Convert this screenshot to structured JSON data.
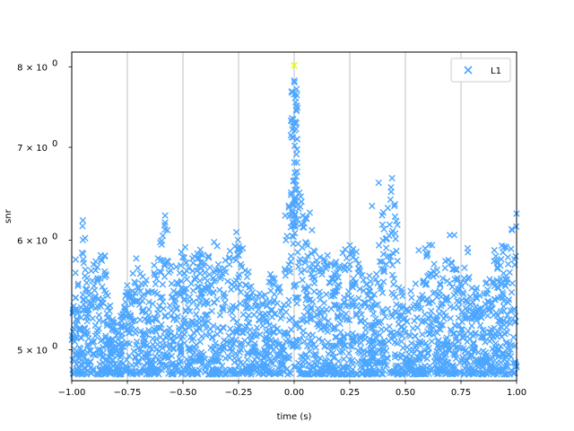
{
  "chart_data": {
    "type": "scatter",
    "title": "",
    "xlabel": "time (s)",
    "ylabel": "snr",
    "xlim": [
      -1.0,
      1.0
    ],
    "ylim": [
      4.75,
      8.2
    ],
    "yscale": "log",
    "grid": "x-vertical",
    "legend_position": "top-right",
    "x_ticks": [
      -1.0,
      -0.75,
      -0.5,
      -0.25,
      0.0,
      0.25,
      0.5,
      0.75,
      1.0
    ],
    "x_tick_labels": [
      "−1.00",
      "−0.75",
      "−0.50",
      "−0.25",
      "0.00",
      "0.25",
      "0.50",
      "0.75",
      "1.00"
    ],
    "y_ticks": [
      5,
      6,
      7,
      8
    ],
    "y_tick_labels": [
      {
        "base": "5 × 10",
        "exp": "0"
      },
      {
        "base": "6 × 10",
        "exp": "0"
      },
      {
        "base": "7 × 10",
        "exp": "0"
      },
      {
        "base": "8 × 10",
        "exp": "0"
      }
    ],
    "series": [
      {
        "name": "L1",
        "marker": "x",
        "color": "#4da6ff",
        "envelope": [
          [
            -1.0,
            5.85
          ],
          [
            -0.97,
            5.95
          ],
          [
            -0.95,
            6.2
          ],
          [
            -0.93,
            5.6
          ],
          [
            -0.9,
            5.8
          ],
          [
            -0.85,
            5.9
          ],
          [
            -0.82,
            5.3
          ],
          [
            -0.8,
            5.2
          ],
          [
            -0.75,
            5.6
          ],
          [
            -0.72,
            5.7
          ],
          [
            -0.7,
            5.9
          ],
          [
            -0.67,
            5.6
          ],
          [
            -0.62,
            5.8
          ],
          [
            -0.58,
            6.25
          ],
          [
            -0.55,
            5.7
          ],
          [
            -0.5,
            5.95
          ],
          [
            -0.47,
            5.7
          ],
          [
            -0.45,
            5.9
          ],
          [
            -0.4,
            5.95
          ],
          [
            -0.37,
            5.9
          ],
          [
            -0.35,
            6.0
          ],
          [
            -0.3,
            5.85
          ],
          [
            -0.26,
            6.1
          ],
          [
            -0.22,
            5.95
          ],
          [
            -0.2,
            5.6
          ],
          [
            -0.15,
            5.5
          ],
          [
            -0.1,
            5.7
          ],
          [
            -0.07,
            5.6
          ],
          [
            -0.04,
            6.0
          ],
          [
            -0.02,
            6.6
          ],
          [
            0.0,
            7.6
          ],
          [
            0.01,
            7.3
          ],
          [
            0.02,
            6.6
          ],
          [
            0.04,
            6.3
          ],
          [
            0.06,
            6.2
          ],
          [
            0.08,
            5.9
          ],
          [
            0.12,
            5.9
          ],
          [
            0.15,
            5.8
          ],
          [
            0.2,
            5.85
          ],
          [
            0.24,
            5.95
          ],
          [
            0.28,
            5.9
          ],
          [
            0.32,
            5.7
          ],
          [
            0.36,
            5.6
          ],
          [
            0.38,
            6.0
          ],
          [
            0.4,
            6.4
          ],
          [
            0.42,
            6.5
          ],
          [
            0.44,
            6.6
          ],
          [
            0.46,
            6.3
          ],
          [
            0.48,
            5.6
          ],
          [
            0.5,
            5.4
          ],
          [
            0.54,
            5.6
          ],
          [
            0.57,
            5.8
          ],
          [
            0.6,
            6.0
          ],
          [
            0.62,
            5.9
          ],
          [
            0.66,
            5.6
          ],
          [
            0.7,
            6.05
          ],
          [
            0.74,
            5.6
          ],
          [
            0.78,
            5.9
          ],
          [
            0.8,
            5.6
          ],
          [
            0.84,
            5.5
          ],
          [
            0.88,
            5.8
          ],
          [
            0.92,
            5.9
          ],
          [
            0.96,
            6.1
          ],
          [
            1.0,
            6.3
          ]
        ],
        "outliers": [
          [
            -0.95,
            6.2
          ],
          [
            -0.94,
            6.02
          ],
          [
            -0.87,
            5.85
          ],
          [
            -0.71,
            5.82
          ],
          [
            -0.58,
            6.25
          ],
          [
            -0.57,
            6.1
          ],
          [
            -0.49,
            5.93
          ],
          [
            -0.36,
            5.98
          ],
          [
            -0.26,
            6.08
          ],
          [
            -0.04,
            6.25
          ],
          [
            0.07,
            6.28
          ],
          [
            0.08,
            6.1
          ],
          [
            0.15,
            5.85
          ],
          [
            0.25,
            5.95
          ],
          [
            0.35,
            6.35
          ],
          [
            0.38,
            6.6
          ],
          [
            0.44,
            6.65
          ],
          [
            0.45,
            6.35
          ],
          [
            0.56,
            5.9
          ],
          [
            0.62,
            5.95
          ],
          [
            0.7,
            6.05
          ],
          [
            0.72,
            6.05
          ],
          [
            0.78,
            5.92
          ],
          [
            0.9,
            5.9
          ],
          [
            0.98,
            6.1
          ],
          [
            1.0,
            6.27
          ]
        ],
        "peak": [
          0.0,
          7.82
        ]
      },
      {
        "name": "",
        "marker": "x",
        "color": "#e6ff00",
        "points": [
          [
            0.0,
            8.02
          ]
        ]
      }
    ]
  }
}
